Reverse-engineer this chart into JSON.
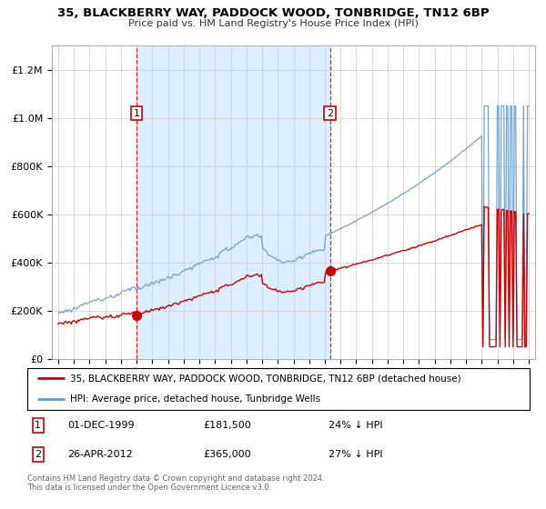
{
  "title": "35, BLACKBERRY WAY, PADDOCK WOOD, TONBRIDGE, TN12 6BP",
  "subtitle": "Price paid vs. HM Land Registry's House Price Index (HPI)",
  "legend_label_red": "35, BLACKBERRY WAY, PADDOCK WOOD, TONBRIDGE, TN12 6BP (detached house)",
  "legend_label_blue": "HPI: Average price, detached house, Tunbridge Wells",
  "annotation1_date": "01-DEC-1999",
  "annotation1_price": "£181,500",
  "annotation1_hpi": "24% ↓ HPI",
  "annotation2_date": "26-APR-2012",
  "annotation2_price": "£365,000",
  "annotation2_hpi": "27% ↓ HPI",
  "footer": "Contains HM Land Registry data © Crown copyright and database right 2024.\nThis data is licensed under the Open Government Licence v3.0.",
  "red_color": "#cc0000",
  "blue_color": "#6699cc",
  "shade_color": "#ddeeff",
  "ylim_min": 0,
  "ylim_max": 1300000,
  "yticks": [
    0,
    200000,
    400000,
    600000,
    800000,
    1000000,
    1200000
  ],
  "purchase1_year": 2000.0,
  "purchase1_value": 181500,
  "purchase2_year": 2012.33,
  "purchase2_value": 365000
}
